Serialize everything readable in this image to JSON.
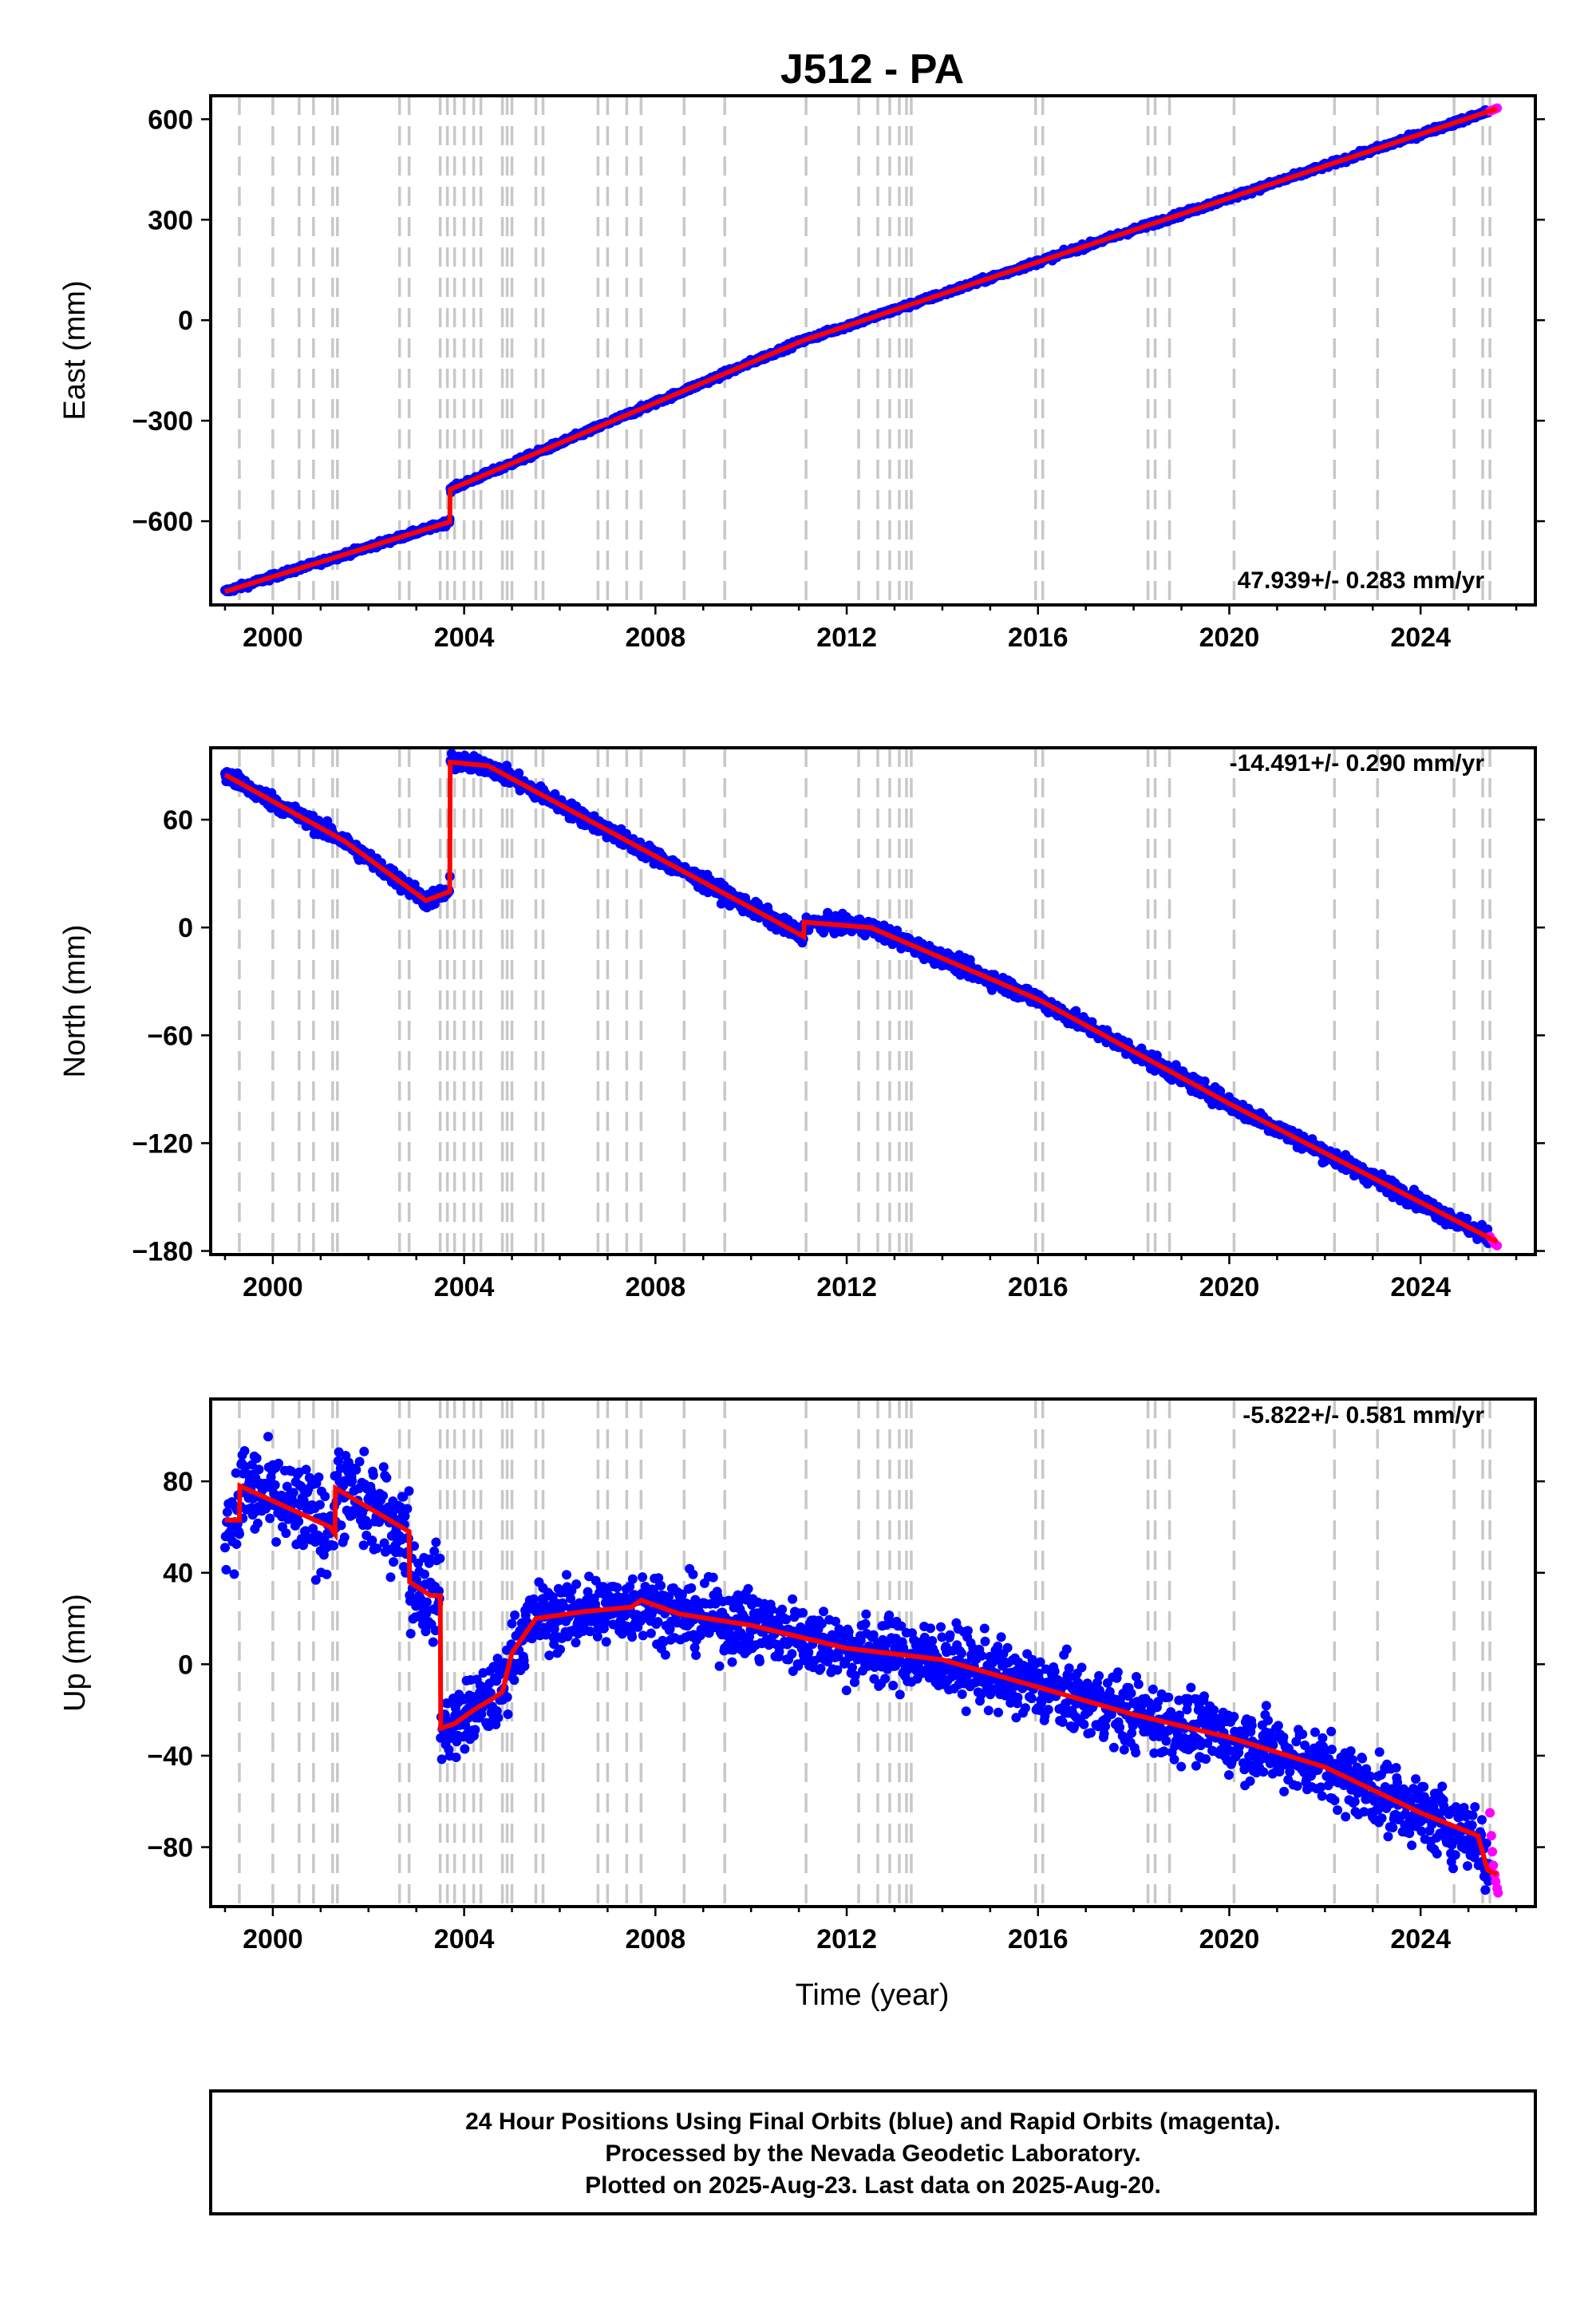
{
  "title": "J512 - PA",
  "xlabel": "Time (year)",
  "colors": {
    "final": "#0000ff",
    "rapid": "#ff00ff",
    "model": "#ff0000",
    "events": "#c8c8c8"
  },
  "chart_data": [
    {
      "type": "scatter",
      "ylabel": "East (mm)",
      "rate_label": "47.939+/- 0.283 mm/yr",
      "xlim": [
        1998.7,
        2026.4
      ],
      "ylim": [
        -850,
        670
      ],
      "yticks": [
        -600,
        -300,
        0,
        300,
        600
      ],
      "ytick_labels": [
        "−600",
        "−300",
        "0",
        "300",
        "600"
      ],
      "xticks": [
        2000,
        2004,
        2008,
        2012,
        2016,
        2020,
        2024
      ],
      "xtick_labels": [
        "2000",
        "2004",
        "2008",
        "2012",
        "2016",
        "2020",
        "2024"
      ],
      "event_years": [
        1999.3,
        2000.0,
        2000.55,
        2000.85,
        2001.25,
        2001.35,
        2002.65,
        2002.85,
        2003.5,
        2003.65,
        2003.8,
        2004.0,
        2004.2,
        2004.35,
        2004.8,
        2004.9,
        2005.0,
        2005.5,
        2005.65,
        2006.8,
        2007.0,
        2007.4,
        2007.7,
        2008.6,
        2009.45,
        2011.15,
        2012.25,
        2012.65,
        2012.9,
        2013.1,
        2013.25,
        2013.35,
        2015.95,
        2016.1,
        2018.3,
        2018.45,
        2018.75,
        2020.1,
        2022.2,
        2023.1,
        2024.7,
        2025.3,
        2025.45
      ],
      "series": [
        {
          "name": "model",
          "x": [
            1999.0,
            2003.7,
            2003.71,
            2011.1,
            2025.6
          ],
          "y": [
            -810,
            -602,
            -505,
            -60,
            632
          ]
        }
      ],
      "rapid_points": {
        "x": [
          2025.45,
          2025.5,
          2025.55,
          2025.6
        ],
        "y": [
          624,
          627,
          630,
          633
        ]
      }
    },
    {
      "type": "scatter",
      "ylabel": "North (mm)",
      "rate_label": "-14.491+/- 0.290 mm/yr",
      "xlim": [
        1998.7,
        2026.4
      ],
      "ylim": [
        -182,
        100
      ],
      "yticks": [
        -180,
        -120,
        -60,
        0,
        60
      ],
      "ytick_labels": [
        "−180",
        "−120",
        "−60",
        "0",
        "60"
      ],
      "xticks": [
        2000,
        2004,
        2008,
        2012,
        2016,
        2020,
        2024
      ],
      "xtick_labels": [
        "2000",
        "2004",
        "2008",
        "2012",
        "2016",
        "2020",
        "2024"
      ],
      "event_years": [
        1999.3,
        2000.0,
        2000.55,
        2000.85,
        2001.25,
        2001.35,
        2002.65,
        2002.85,
        2003.5,
        2003.65,
        2003.8,
        2004.0,
        2004.2,
        2004.35,
        2004.8,
        2004.9,
        2005.0,
        2005.5,
        2005.65,
        2006.8,
        2007.0,
        2007.4,
        2007.7,
        2008.6,
        2009.45,
        2011.15,
        2012.25,
        2012.65,
        2012.9,
        2013.1,
        2013.25,
        2013.35,
        2015.95,
        2016.1,
        2018.3,
        2018.45,
        2018.75,
        2020.1,
        2022.2,
        2023.1,
        2024.7,
        2025.3,
        2025.45
      ],
      "series": [
        {
          "name": "model",
          "x": [
            1999.0,
            2001.5,
            2003.2,
            2003.7,
            2003.71,
            2004.5,
            2011.1,
            2011.11,
            2012.5,
            2016.0,
            2020.0,
            2025.6
          ],
          "y": [
            85,
            48,
            15,
            20,
            92,
            90,
            -5,
            3,
            0,
            -40,
            -98,
            -175
          ]
        }
      ],
      "rapid_points": {
        "x": [
          2025.45,
          2025.5,
          2025.55,
          2025.6
        ],
        "y": [
          -172,
          -174,
          -176,
          -177
        ]
      }
    },
    {
      "type": "scatter",
      "ylabel": "Up (mm)",
      "rate_label": "-5.822+/- 0.581 mm/yr",
      "xlim": [
        1998.7,
        2026.4
      ],
      "ylim": [
        -106,
        116
      ],
      "yticks": [
        -80,
        -40,
        0,
        40,
        80
      ],
      "ytick_labels": [
        "−80",
        "−40",
        "0",
        "40",
        "80"
      ],
      "xticks": [
        2000,
        2004,
        2008,
        2012,
        2016,
        2020,
        2024
      ],
      "xtick_labels": [
        "2000",
        "2004",
        "2008",
        "2012",
        "2016",
        "2020",
        "2024"
      ],
      "event_years": [
        1999.3,
        2000.0,
        2000.55,
        2000.85,
        2001.25,
        2001.35,
        2002.65,
        2002.85,
        2003.5,
        2003.65,
        2003.8,
        2004.0,
        2004.2,
        2004.35,
        2004.8,
        2004.9,
        2005.0,
        2005.5,
        2005.65,
        2006.8,
        2007.0,
        2007.4,
        2007.7,
        2008.6,
        2009.45,
        2011.15,
        2012.25,
        2012.65,
        2012.9,
        2013.1,
        2013.25,
        2013.35,
        2015.95,
        2016.1,
        2018.3,
        2018.45,
        2018.75,
        2020.1,
        2022.2,
        2023.1,
        2024.7,
        2025.3,
        2025.45
      ],
      "series": [
        {
          "name": "model",
          "x": [
            1999.0,
            1999.3,
            1999.31,
            2001.2,
            2001.3,
            2001.31,
            2002.85,
            2002.86,
            2003.3,
            2003.5,
            2003.51,
            2003.8,
            2004.2,
            2004.6,
            2004.8,
            2005.0,
            2005.5,
            2006.5,
            2007.5,
            2007.7,
            2008.5,
            2010.0,
            2012.0,
            2014.0,
            2016.0,
            2018.0,
            2020.0,
            2022.0,
            2024.0,
            2025.2,
            2025.4,
            2025.6
          ],
          "y": [
            63,
            63,
            78,
            60,
            57,
            77,
            58,
            36,
            30,
            30,
            -28,
            -26,
            -20,
            -15,
            -12,
            5,
            20,
            23,
            25,
            28,
            22,
            17,
            7,
            2,
            -10,
            -22,
            -32,
            -45,
            -65,
            -75,
            -90,
            -92
          ]
        }
      ],
      "rapid_points": {
        "x": [
          2025.45,
          2025.48,
          2025.5,
          2025.52,
          2025.55,
          2025.57,
          2025.6,
          2025.62
        ],
        "y": [
          -65,
          -75,
          -82,
          -88,
          -92,
          -95,
          -98,
          -100
        ]
      }
    }
  ],
  "footer": {
    "line1": "24 Hour Positions Using Final Orbits (blue) and Rapid Orbits (magenta).",
    "line2": "Processed by the Nevada Geodetic Laboratory.",
    "line3": "Plotted on 2025-Aug-23. Last data on 2025-Aug-20."
  }
}
